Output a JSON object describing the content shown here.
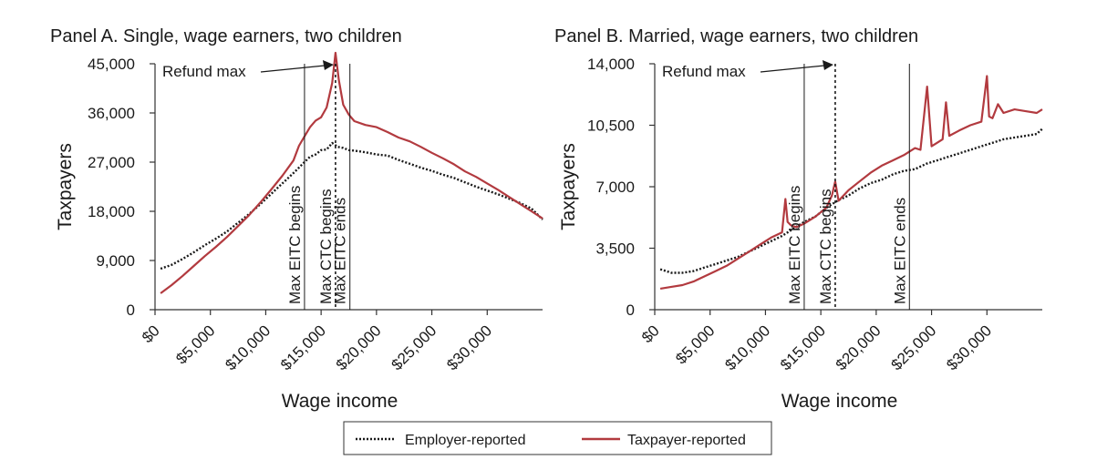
{
  "chart_data": [
    {
      "type": "line",
      "title": "Panel A. Single, wage earners, two children",
      "xlabel": "Wage income",
      "ylabel": "Taxpayers",
      "xlim": [
        0,
        35000
      ],
      "ylim": [
        0,
        45000
      ],
      "x_ticks": [
        0,
        5000,
        10000,
        15000,
        20000,
        25000,
        30000
      ],
      "x_tick_labels": [
        "$0",
        "$5,000",
        "$10,000",
        "$15,000",
        "$20,000",
        "$25,000",
        "$30,000"
      ],
      "y_ticks": [
        0,
        9000,
        18000,
        27000,
        36000,
        45000
      ],
      "y_tick_labels": [
        "0",
        "9,000",
        "18,000",
        "27,000",
        "36,000",
        "45,000"
      ],
      "vlines": [
        {
          "x": 13500,
          "label": "Max EITC begins",
          "style": "solid"
        },
        {
          "x": 16300,
          "label": "Max CTC begins",
          "style": "dotted"
        },
        {
          "x": 17600,
          "label": "Max EITC ends",
          "style": "solid"
        }
      ],
      "annotation": {
        "text": "Refund max",
        "x": 16300,
        "y": 47000
      },
      "series": [
        {
          "name": "Employer-reported",
          "x": [
            500,
            1500,
            2500,
            3500,
            4500,
            5500,
            6500,
            7500,
            8500,
            9500,
            10500,
            11500,
            12500,
            13500,
            14000,
            14500,
            15000,
            15500,
            16000,
            16500,
            17000,
            17500,
            18000,
            19000,
            20000,
            21000,
            22000,
            23000,
            24000,
            25000,
            26000,
            27000,
            28000,
            29000,
            30000,
            31000,
            32000,
            33000,
            34000,
            35000
          ],
          "y": [
            7500,
            8200,
            9300,
            10500,
            11800,
            13000,
            14300,
            15900,
            17500,
            19300,
            21200,
            23100,
            25000,
            27000,
            28000,
            28400,
            29200,
            29300,
            30500,
            29800,
            29600,
            29200,
            29100,
            28800,
            28400,
            28200,
            27400,
            26700,
            26000,
            25400,
            24700,
            24100,
            23300,
            22500,
            21800,
            21100,
            20300,
            19500,
            18500,
            16500
          ]
        },
        {
          "name": "Taxpayer-reported",
          "x": [
            500,
            1500,
            2500,
            3500,
            4500,
            5500,
            6500,
            7500,
            8500,
            9500,
            10500,
            11500,
            12500,
            13000,
            13500,
            14000,
            14500,
            15000,
            15500,
            16000,
            16300,
            16600,
            17000,
            17500,
            18000,
            19000,
            20000,
            21000,
            22000,
            23000,
            24000,
            25000,
            26000,
            27000,
            28000,
            29000,
            30000,
            31000,
            32000,
            33000,
            34000,
            35000
          ],
          "y": [
            3000,
            4500,
            6200,
            8000,
            9800,
            11500,
            13300,
            15300,
            17300,
            19600,
            22000,
            24500,
            27300,
            30000,
            31700,
            33400,
            34600,
            35200,
            37000,
            41500,
            47000,
            42000,
            37500,
            35700,
            34500,
            33800,
            33400,
            32500,
            31500,
            30800,
            29800,
            28700,
            27700,
            26600,
            25300,
            24300,
            23100,
            21900,
            20600,
            19300,
            18000,
            16700
          ]
        }
      ]
    },
    {
      "type": "line",
      "title": "Panel B. Married, wage earners, two children",
      "xlabel": "Wage income",
      "ylabel": "Taxpayers",
      "xlim": [
        0,
        35000
      ],
      "ylim": [
        0,
        14000
      ],
      "x_ticks": [
        0,
        5000,
        10000,
        15000,
        20000,
        25000,
        30000
      ],
      "x_tick_labels": [
        "$0",
        "$5,000",
        "$10,000",
        "$15,000",
        "$20,000",
        "$25,000",
        "$30,000"
      ],
      "y_ticks": [
        0,
        3500,
        7000,
        10500,
        14000
      ],
      "y_tick_labels": [
        "0",
        "3,500",
        "7,000",
        "10,500",
        "14,000"
      ],
      "vlines": [
        {
          "x": 13500,
          "label": "Max EITC begins",
          "style": "solid"
        },
        {
          "x": 16300,
          "label": "Max CTC begins",
          "style": "dotted"
        },
        {
          "x": 23000,
          "label": "Max EITC ends",
          "style": "solid"
        }
      ],
      "annotation": {
        "text": "Refund max",
        "x": 16300,
        "y": 14500
      },
      "series": [
        {
          "name": "Employer-reported",
          "x": [
            500,
            1500,
            2500,
            3500,
            4500,
            5500,
            6500,
            7500,
            8500,
            9500,
            10500,
            11500,
            12500,
            13500,
            14500,
            15500,
            16500,
            17500,
            18500,
            19500,
            20500,
            21500,
            22500,
            23500,
            24500,
            25500,
            26500,
            27500,
            28500,
            29500,
            30500,
            31500,
            32500,
            33500,
            34500,
            35000
          ],
          "y": [
            2300,
            2100,
            2100,
            2200,
            2400,
            2600,
            2800,
            3000,
            3300,
            3600,
            3900,
            4200,
            4600,
            5000,
            5300,
            5800,
            6200,
            6500,
            6900,
            7200,
            7400,
            7700,
            7900,
            8000,
            8300,
            8500,
            8700,
            8900,
            9100,
            9300,
            9500,
            9700,
            9800,
            9900,
            10000,
            10300
          ]
        },
        {
          "name": "Taxpayer-reported",
          "x": [
            500,
            1500,
            2500,
            3500,
            4500,
            5500,
            6500,
            7500,
            8500,
            9500,
            10500,
            11500,
            11800,
            12000,
            12300,
            12800,
            13500,
            14500,
            15500,
            16000,
            16300,
            16600,
            17500,
            18500,
            19500,
            20500,
            21500,
            22500,
            23000,
            23500,
            24000,
            24600,
            25000,
            25500,
            26000,
            26300,
            26600,
            27500,
            28500,
            29500,
            30000,
            30200,
            30500,
            31000,
            31500,
            32500,
            33500,
            34500,
            35000
          ],
          "y": [
            1200,
            1300,
            1400,
            1600,
            1900,
            2200,
            2500,
            2900,
            3300,
            3700,
            4100,
            4400,
            6300,
            5000,
            4800,
            4700,
            4900,
            5300,
            5800,
            6500,
            7300,
            6200,
            6800,
            7300,
            7800,
            8200,
            8500,
            8800,
            9000,
            9200,
            9100,
            12700,
            9300,
            9500,
            9700,
            11800,
            9900,
            10200,
            10500,
            10700,
            13300,
            11000,
            10900,
            11700,
            11200,
            11400,
            11300,
            11200,
            11400
          ]
        }
      ]
    }
  ]
}
